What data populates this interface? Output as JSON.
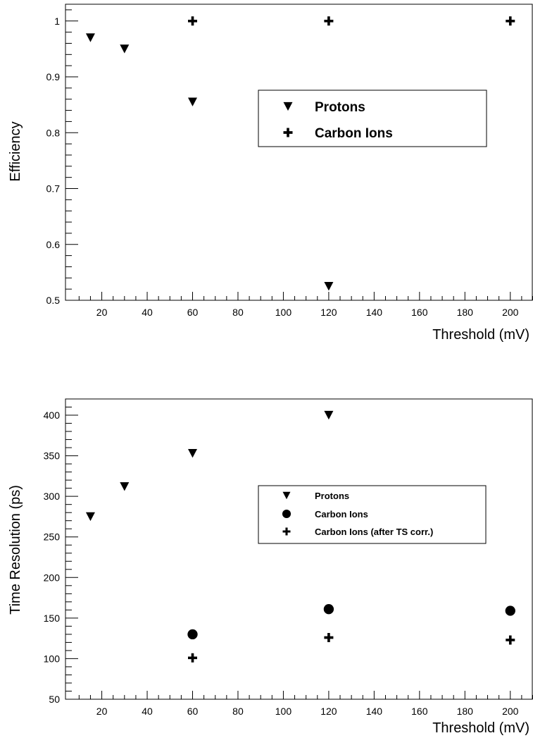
{
  "chart_data": [
    {
      "type": "scatter",
      "xlabel": "Threshold (mV)",
      "ylabel": "Efficiency",
      "xlim": [
        4,
        210
      ],
      "ylim": [
        0.5,
        1.03
      ],
      "x_ticks": [
        20,
        40,
        60,
        80,
        100,
        120,
        140,
        160,
        180,
        200
      ],
      "y_ticks": [
        0.5,
        0.6,
        0.7,
        0.8,
        0.9,
        1
      ],
      "y_tick_labels": [
        "0.5",
        "0.6",
        "0.7",
        "0.8",
        "0.9",
        "1"
      ],
      "legend_position": "center-right",
      "grid": false,
      "series": [
        {
          "name": "Protons",
          "marker": "triangle-down",
          "x": [
            15,
            30,
            60,
            120
          ],
          "y": [
            0.97,
            0.95,
            0.855,
            0.525
          ]
        },
        {
          "name": "Carbon Ions",
          "marker": "cross",
          "x": [
            60,
            120,
            200
          ],
          "y": [
            1.0,
            1.0,
            1.0
          ]
        }
      ]
    },
    {
      "type": "scatter",
      "xlabel": "Threshold (mV)",
      "ylabel": "Time Resolution (ps)",
      "xlim": [
        4,
        210
      ],
      "ylim": [
        50,
        420
      ],
      "x_ticks": [
        20,
        40,
        60,
        80,
        100,
        120,
        140,
        160,
        180,
        200
      ],
      "y_ticks": [
        50,
        100,
        150,
        200,
        250,
        300,
        350,
        400
      ],
      "y_tick_labels": [
        "50",
        "100",
        "150",
        "200",
        "250",
        "300",
        "350",
        "400"
      ],
      "legend_position": "center-right",
      "grid": false,
      "series": [
        {
          "name": "Protons",
          "marker": "triangle-down",
          "x": [
            15,
            30,
            60,
            120
          ],
          "y": [
            275,
            312,
            353,
            400
          ]
        },
        {
          "name": "Carbon Ions",
          "marker": "circle",
          "x": [
            60,
            120,
            200
          ],
          "y": [
            130,
            161,
            159
          ]
        },
        {
          "name": "Carbon Ions (after TS corr.)",
          "marker": "cross",
          "x": [
            60,
            120,
            200
          ],
          "y": [
            101,
            126,
            123
          ]
        }
      ]
    }
  ]
}
